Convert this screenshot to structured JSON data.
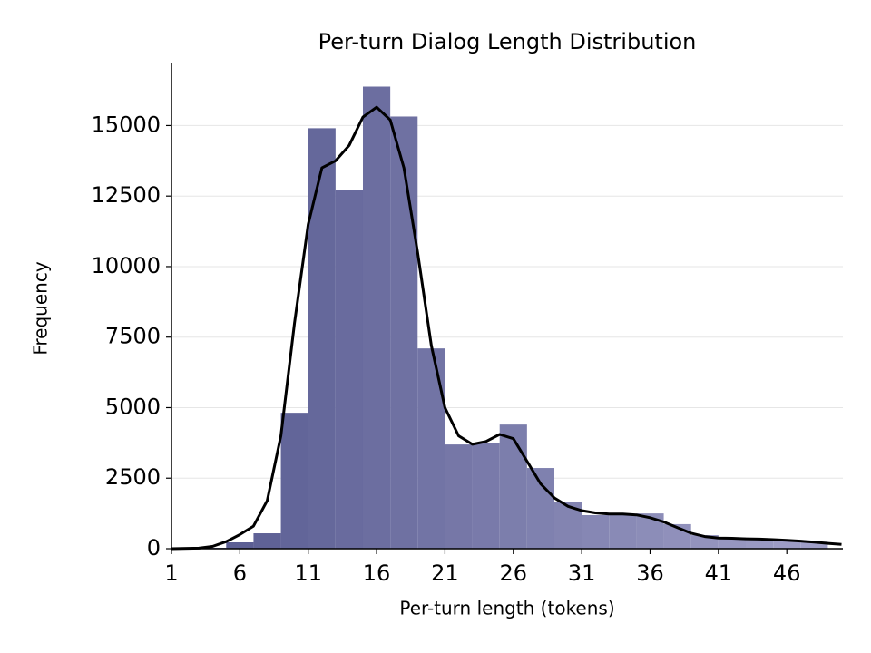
{
  "chart_data": {
    "type": "histogram",
    "title": "Per-turn Dialog Length Distribution",
    "x_label": "Per-turn length (tokens)",
    "y_label": "Frequency",
    "bins": [
      1,
      3,
      5,
      7,
      9,
      11,
      13,
      15,
      17,
      19,
      21,
      23,
      25,
      27,
      29,
      31,
      33,
      35,
      37,
      39,
      41,
      43,
      45,
      47,
      49
    ],
    "counts": [
      0,
      30,
      225,
      546,
      4818,
      14905,
      12720,
      16380,
      15320,
      7100,
      3694,
      3760,
      4400,
      2860,
      1640,
      1190,
      1190,
      1250,
      870,
      480,
      400,
      350,
      300,
      250
    ],
    "color_start": "#55598f",
    "color_end": "#a09fc7",
    "kde": {
      "color": "#000000",
      "x": [
        1,
        3,
        4,
        5,
        6,
        7,
        8,
        9,
        10,
        11,
        12,
        13,
        14,
        15,
        16,
        17,
        18,
        19,
        20,
        21,
        22,
        23,
        24,
        25,
        26,
        27,
        28,
        29,
        30,
        31,
        32,
        33,
        34,
        35,
        36,
        37,
        38,
        39,
        40,
        41,
        42,
        43,
        44,
        45,
        46,
        47,
        48,
        49,
        50
      ],
      "values": [
        0,
        20,
        80,
        250,
        500,
        800,
        1700,
        4000,
        8000,
        11500,
        13500,
        13750,
        14300,
        15300,
        15650,
        15200,
        13500,
        10500,
        7200,
        5000,
        4000,
        3700,
        3800,
        4050,
        3900,
        3100,
        2300,
        1800,
        1500,
        1350,
        1270,
        1230,
        1230,
        1200,
        1100,
        950,
        750,
        550,
        430,
        380,
        370,
        350,
        340,
        320,
        300,
        270,
        230,
        190,
        150
      ]
    },
    "xlim": [
      1,
      50.1
    ],
    "ylim": [
      0,
      17200
    ],
    "xticks": [
      1,
      6,
      11,
      16,
      21,
      26,
      31,
      36,
      41,
      46
    ],
    "yticks": [
      0,
      2500,
      5000,
      7500,
      10000,
      12500,
      15000
    ],
    "grid": true
  }
}
